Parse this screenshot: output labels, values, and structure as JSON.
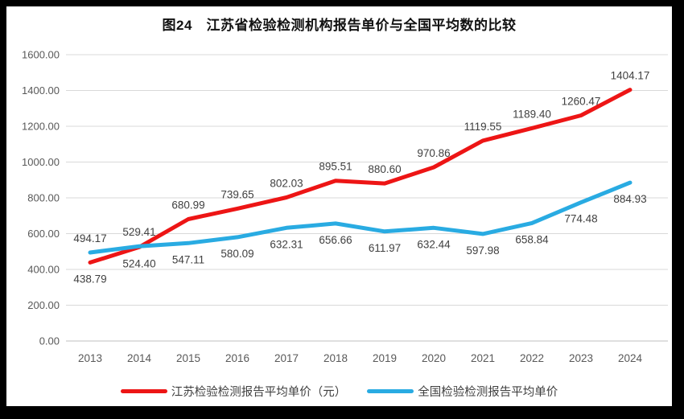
{
  "title": "图24　江苏省检验检测机构报告单价与全国平均数的比较",
  "chart_data": {
    "type": "line",
    "categories": [
      "2013",
      "2014",
      "2015",
      "2016",
      "2017",
      "2018",
      "2019",
      "2020",
      "2021",
      "2022",
      "2023",
      "2024"
    ],
    "series": [
      {
        "name": "江苏检验检测报告平均单价（元）",
        "color": "#ED1515",
        "values": [
          438.79,
          524.4,
          680.99,
          739.65,
          802.03,
          895.51,
          880.6,
          970.86,
          1119.55,
          1189.4,
          1260.47,
          1404.17
        ]
      },
      {
        "name": "全国检验检测报告平均单价",
        "color": "#29ABE2",
        "values": [
          494.17,
          529.41,
          547.11,
          580.09,
          632.31,
          656.66,
          611.97,
          632.44,
          597.98,
          658.84,
          774.48,
          884.93
        ]
      }
    ],
    "xlabel": "",
    "ylabel": "",
    "ylim": [
      0,
      1600
    ],
    "ytick_step": 200,
    "ytick_labels": [
      "0.00",
      "200.00",
      "400.00",
      "600.00",
      "800.00",
      "1000.00",
      "1200.00",
      "1400.00",
      "1600.00"
    ],
    "grid": true,
    "data_labels": true,
    "legend_position": "bottom"
  },
  "colors": {
    "grid": "#D9D9D9",
    "axis_line": "#BFBFBF",
    "tick_text": "#595959",
    "label_text": "#404040",
    "title_text": "#111111",
    "frame": "#000000",
    "background": "#FFFFFF"
  }
}
